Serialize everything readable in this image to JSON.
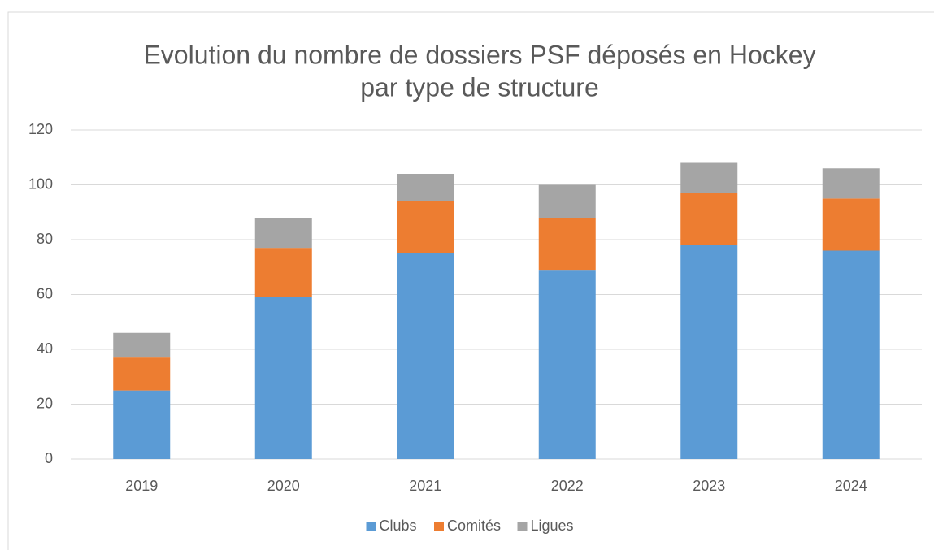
{
  "chart_data": {
    "type": "stacked_bar",
    "title": [
      "Evolution du nombre de dossiers PSF déposés en Hockey",
      "par type de structure"
    ],
    "categories": [
      "2019",
      "2020",
      "2021",
      "2022",
      "2023",
      "2024"
    ],
    "series": [
      {
        "name": "Clubs",
        "color": "#5b9bd5",
        "values": [
          25,
          59,
          75,
          69,
          78,
          76
        ]
      },
      {
        "name": "Comités",
        "color": "#ed7d31",
        "values": [
          12,
          18,
          19,
          19,
          19,
          19
        ]
      },
      {
        "name": "Ligues",
        "color": "#a5a5a5",
        "values": [
          9,
          11,
          10,
          12,
          11,
          11
        ]
      }
    ],
    "ylim": [
      0,
      120
    ],
    "yticks": [
      0,
      20,
      40,
      60,
      80,
      100,
      120
    ],
    "grid": true,
    "legend": "bottom"
  }
}
